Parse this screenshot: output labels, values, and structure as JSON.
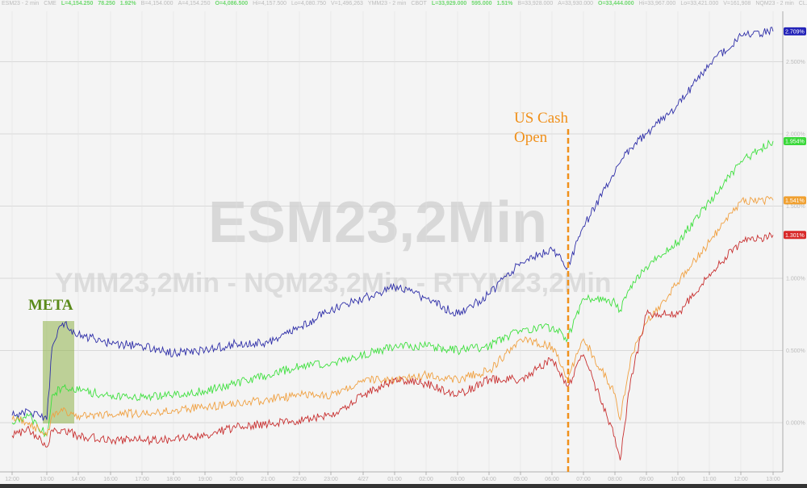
{
  "header": {
    "items": [
      {
        "text": "ESM23 - 2 min",
        "hl": false
      },
      {
        "text": "CME",
        "hl": false
      },
      {
        "text": "L=4,154.250",
        "hl": true
      },
      {
        "text": "78.250",
        "hl": true
      },
      {
        "text": "1.92%",
        "hl": true
      },
      {
        "text": "B=4,154.000",
        "hl": false
      },
      {
        "text": "A=4,154.250",
        "hl": false
      },
      {
        "text": "O=4,086.500",
        "hl": true
      },
      {
        "text": "Hi=4,157.500",
        "hl": false
      },
      {
        "text": "Lo=4,080.750",
        "hl": false
      },
      {
        "text": "V=1,496,263",
        "hl": false
      },
      {
        "text": "YMM23 - 2 min",
        "hl": false
      },
      {
        "text": "CBOT",
        "hl": false
      },
      {
        "text": "L=33,929.000",
        "hl": true
      },
      {
        "text": "595.000",
        "hl": true
      },
      {
        "text": "1.51%",
        "hl": true
      },
      {
        "text": "B=33,928.000",
        "hl": false
      },
      {
        "text": "A=33,930.000",
        "hl": false
      },
      {
        "text": "O=33,444.000",
        "hl": true
      },
      {
        "text": "Hi=33,967.000",
        "hl": false
      },
      {
        "text": "Lo=33,421.000",
        "hl": false
      },
      {
        "text": "V=161,908",
        "hl": false
      },
      {
        "text": "NQM23 - 2 min",
        "hl": false
      },
      {
        "text": "CL...",
        "hl": false
      }
    ]
  },
  "chart_data": {
    "type": "line",
    "watermark_main": "ESM23,2Min",
    "watermark_sub": "YMM23,2Min - NQM23,2Min - RTYM23,2Min",
    "x_ticks": [
      "12:00",
      "13:00",
      "14:00",
      "16:00",
      "17:00",
      "18:00",
      "19:00",
      "20:00",
      "21:00",
      "22:00",
      "23:00",
      "4/27",
      "01:00",
      "02:00",
      "03:00",
      "04:00",
      "05:00",
      "06:00",
      "07:00",
      "08:00",
      "09:00",
      "10:00",
      "11:00",
      "12:00",
      "13:00"
    ],
    "y_ticks": [
      "0.000%",
      "0.500%",
      "1.000%",
      "1.500%",
      "2.000%",
      "2.500%"
    ],
    "y_tick_values": [
      0,
      0.5,
      1,
      1.5,
      2,
      2.5
    ],
    "ylim": [
      -0.34,
      2.86
    ],
    "grid": true,
    "x": [
      "12:00",
      "12:30",
      "13:00",
      "13:10",
      "13:30",
      "14:00",
      "16:00",
      "17:00",
      "18:00",
      "19:00",
      "20:00",
      "21:00",
      "22:00",
      "23:00",
      "4/27",
      "01:00",
      "02:00",
      "03:00",
      "04:00",
      "05:00",
      "06:00",
      "06:30",
      "07:00",
      "08:00",
      "08:10",
      "08:30",
      "09:00",
      "10:00",
      "11:00",
      "12:00",
      "13:00"
    ],
    "series": [
      {
        "color": "#2e2ea8",
        "last_label": "2.709%",
        "label_bg": "#2323b8",
        "values": [
          0.05,
          0.08,
          0.02,
          0.52,
          0.69,
          0.61,
          0.55,
          0.53,
          0.48,
          0.5,
          0.55,
          0.55,
          0.66,
          0.78,
          0.86,
          0.94,
          0.86,
          0.75,
          0.89,
          1.11,
          1.2,
          1.08,
          1.36,
          1.73,
          1.8,
          1.9,
          2.0,
          2.2,
          2.48,
          2.68,
          2.71
        ]
      },
      {
        "color": "#3ee03e",
        "last_label": "1.954%",
        "label_bg": "#3ad83a",
        "values": [
          0.0,
          0.05,
          -0.09,
          0.19,
          0.25,
          0.22,
          0.19,
          0.18,
          0.19,
          0.22,
          0.27,
          0.33,
          0.39,
          0.41,
          0.47,
          0.53,
          0.53,
          0.5,
          0.53,
          0.64,
          0.66,
          0.58,
          0.86,
          0.83,
          0.78,
          0.95,
          1.08,
          1.25,
          1.53,
          1.81,
          1.95
        ]
      },
      {
        "color": "#f0a040",
        "last_label": "1.541%",
        "label_bg": "#f0a030",
        "values": [
          0.02,
          0.0,
          -0.09,
          0.05,
          0.08,
          0.05,
          0.05,
          0.07,
          0.08,
          0.11,
          0.13,
          0.16,
          0.19,
          0.19,
          0.3,
          0.3,
          0.33,
          0.3,
          0.36,
          0.58,
          0.53,
          0.3,
          0.58,
          0.2,
          0.02,
          0.45,
          0.69,
          0.97,
          1.25,
          1.53,
          1.54
        ]
      },
      {
        "color": "#c83030",
        "last_label": "1.301%",
        "label_bg": "#d82828",
        "values": [
          -0.09,
          -0.05,
          -0.17,
          -0.05,
          -0.05,
          -0.09,
          -0.12,
          -0.12,
          -0.12,
          -0.09,
          -0.03,
          -0.01,
          0.02,
          0.05,
          0.19,
          0.3,
          0.27,
          0.19,
          0.3,
          0.3,
          0.44,
          0.25,
          0.47,
          -0.1,
          -0.26,
          0.3,
          0.75,
          0.75,
          1.03,
          1.25,
          1.3
        ]
      }
    ],
    "annotations": [
      {
        "text": "META",
        "color": "#5a8a1a",
        "shade": "#8fb24a",
        "from": "13:00",
        "to": "14:00"
      },
      {
        "text": "US Cash",
        "text2": "Open",
        "color": "#f0901a",
        "at": "06:30"
      }
    ]
  }
}
